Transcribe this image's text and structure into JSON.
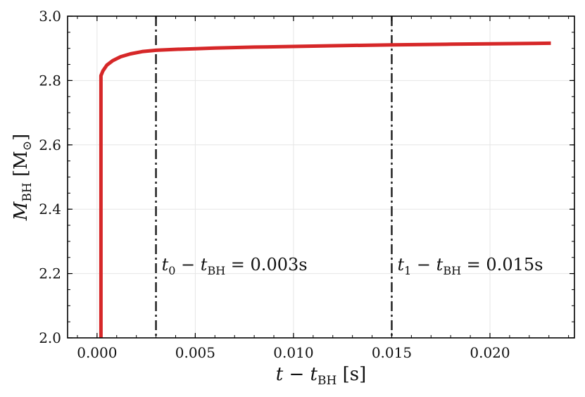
{
  "chart_data": {
    "type": "line",
    "xlabel": {
      "main": "t − t",
      "sub": "BH",
      "unit": " [s]"
    },
    "ylabel": {
      "main": "M",
      "sub": "BH",
      "unit_open": " [M",
      "unit_sub": "⊙",
      "unit_close": "]"
    },
    "xlim": [
      -0.0015,
      0.0243
    ],
    "ylim": [
      2.0,
      3.0
    ],
    "xticks": [
      0.0,
      0.005,
      0.01,
      0.015,
      0.02
    ],
    "xtick_labels": [
      "0.000",
      "0.005",
      "0.010",
      "0.015",
      "0.020"
    ],
    "yticks": [
      2.0,
      2.2,
      2.4,
      2.6,
      2.8,
      3.0
    ],
    "ytick_labels": [
      "2.0",
      "2.2",
      "2.4",
      "2.6",
      "2.8",
      "3.0"
    ],
    "grid": true,
    "series": [
      {
        "color": "#d62728",
        "x": [
          0.0002,
          0.0002,
          0.0003,
          0.0005,
          0.0008,
          0.0012,
          0.0017,
          0.0023,
          0.003,
          0.004,
          0.005,
          0.006,
          0.008,
          0.01,
          0.012,
          0.015,
          0.018,
          0.02,
          0.0231
        ],
        "y": [
          2.0,
          2.815,
          2.83,
          2.848,
          2.862,
          2.874,
          2.883,
          2.89,
          2.894,
          2.897,
          2.899,
          2.901,
          2.904,
          2.906,
          2.908,
          2.911,
          2.913,
          2.914,
          2.916
        ]
      }
    ],
    "vlines": [
      {
        "x": 0.003,
        "label": {
          "main": "t",
          "sub0": "0",
          "mid": " − t",
          "sub1": "BH",
          "val": " = 0.003s"
        }
      },
      {
        "x": 0.015,
        "label": {
          "main": "t",
          "sub0": "1",
          "mid": " − t",
          "sub1": "BH",
          "val": " = 0.015s"
        }
      }
    ]
  }
}
